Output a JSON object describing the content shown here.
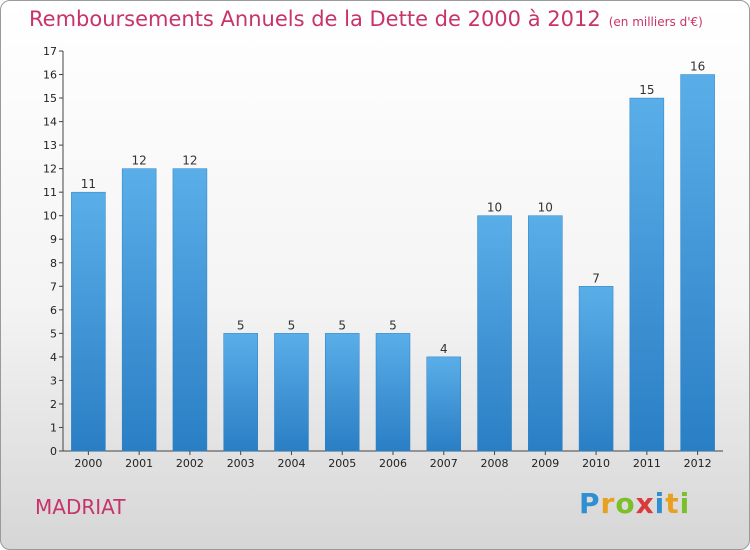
{
  "chart_data": {
    "type": "bar",
    "title": "Remboursements Annuels de la Dette de 2000 à 2012",
    "subtitle": "(en milliers d'€)",
    "categories": [
      "2000",
      "2001",
      "2002",
      "2003",
      "2004",
      "2005",
      "2006",
      "2007",
      "2008",
      "2009",
      "2010",
      "2011",
      "2012"
    ],
    "values": [
      11,
      12,
      12,
      5,
      5,
      5,
      5,
      4,
      10,
      10,
      7,
      15,
      16
    ],
    "ylim": [
      0,
      17
    ],
    "yticks": [
      0,
      1,
      2,
      3,
      4,
      5,
      6,
      7,
      8,
      9,
      10,
      11,
      12,
      13,
      14,
      15,
      16,
      17
    ],
    "bar_color": "#3d93d8",
    "grid": false
  },
  "footer": {
    "place": "MADRIAT",
    "logo_letters": [
      "P",
      "r",
      "o",
      "x",
      "i",
      "t",
      "i"
    ],
    "logo_colors": [
      "#2f8fd0",
      "#e8a022",
      "#7cbf2a",
      "#d93a3a",
      "#2f8fd0",
      "#e8a022",
      "#7cbf2a"
    ]
  }
}
